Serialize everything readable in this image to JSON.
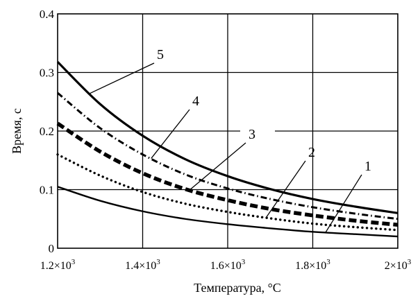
{
  "chart_data": {
    "type": "line",
    "title": "",
    "xlabel": "Температура, °С",
    "ylabel": "Время, с",
    "xlim": [
      1200,
      2000
    ],
    "ylim": [
      0,
      0.4
    ],
    "grid": true,
    "legend": "none",
    "x_ticks": [
      {
        "value": 1200,
        "mantissa": "1.2",
        "base": "×10",
        "exp": "3"
      },
      {
        "value": 1400,
        "mantissa": "1.4",
        "base": "×10",
        "exp": "3"
      },
      {
        "value": 1600,
        "mantissa": "1.6",
        "base": "×10",
        "exp": "3"
      },
      {
        "value": 1800,
        "mantissa": "1.8",
        "base": "×10",
        "exp": "3"
      },
      {
        "value": 2000,
        "mantissa": "2",
        "base": "×10",
        "exp": "3"
      }
    ],
    "y_ticks": [
      {
        "value": 0,
        "label": "0"
      },
      {
        "value": 0.1,
        "label": "0.1"
      },
      {
        "value": 0.2,
        "label": "0.2"
      },
      {
        "value": 0.3,
        "label": "0.3"
      },
      {
        "value": 0.4,
        "label": "0.4"
      }
    ],
    "series": [
      {
        "label": "1",
        "style": "solid-thin",
        "x": [
          1200,
          1300,
          1400,
          1500,
          1600,
          1700,
          1800,
          1900,
          2000
        ],
        "y": [
          0.105,
          0.081,
          0.063,
          0.05,
          0.041,
          0.034,
          0.028,
          0.024,
          0.02
        ]
      },
      {
        "label": "2",
        "style": "dotted",
        "x": [
          1200,
          1300,
          1400,
          1500,
          1600,
          1700,
          1800,
          1900,
          2000
        ],
        "y": [
          0.16,
          0.124,
          0.096,
          0.076,
          0.062,
          0.051,
          0.042,
          0.036,
          0.031
        ]
      },
      {
        "label": "3",
        "style": "dashed-thick",
        "x": [
          1200,
          1300,
          1400,
          1500,
          1600,
          1700,
          1800,
          1900,
          2000
        ],
        "y": [
          0.213,
          0.165,
          0.128,
          0.101,
          0.082,
          0.067,
          0.056,
          0.047,
          0.04
        ]
      },
      {
        "label": "4",
        "style": "dash-dot",
        "x": [
          1200,
          1300,
          1400,
          1500,
          1600,
          1700,
          1800,
          1900,
          2000
        ],
        "y": [
          0.265,
          0.205,
          0.16,
          0.126,
          0.102,
          0.084,
          0.07,
          0.059,
          0.05
        ]
      },
      {
        "label": "5",
        "style": "solid-thick",
        "x": [
          1200,
          1300,
          1400,
          1500,
          1600,
          1700,
          1800,
          1900,
          2000
        ],
        "y": [
          0.318,
          0.246,
          0.192,
          0.152,
          0.123,
          0.101,
          0.084,
          0.071,
          0.06
        ]
      }
    ]
  }
}
